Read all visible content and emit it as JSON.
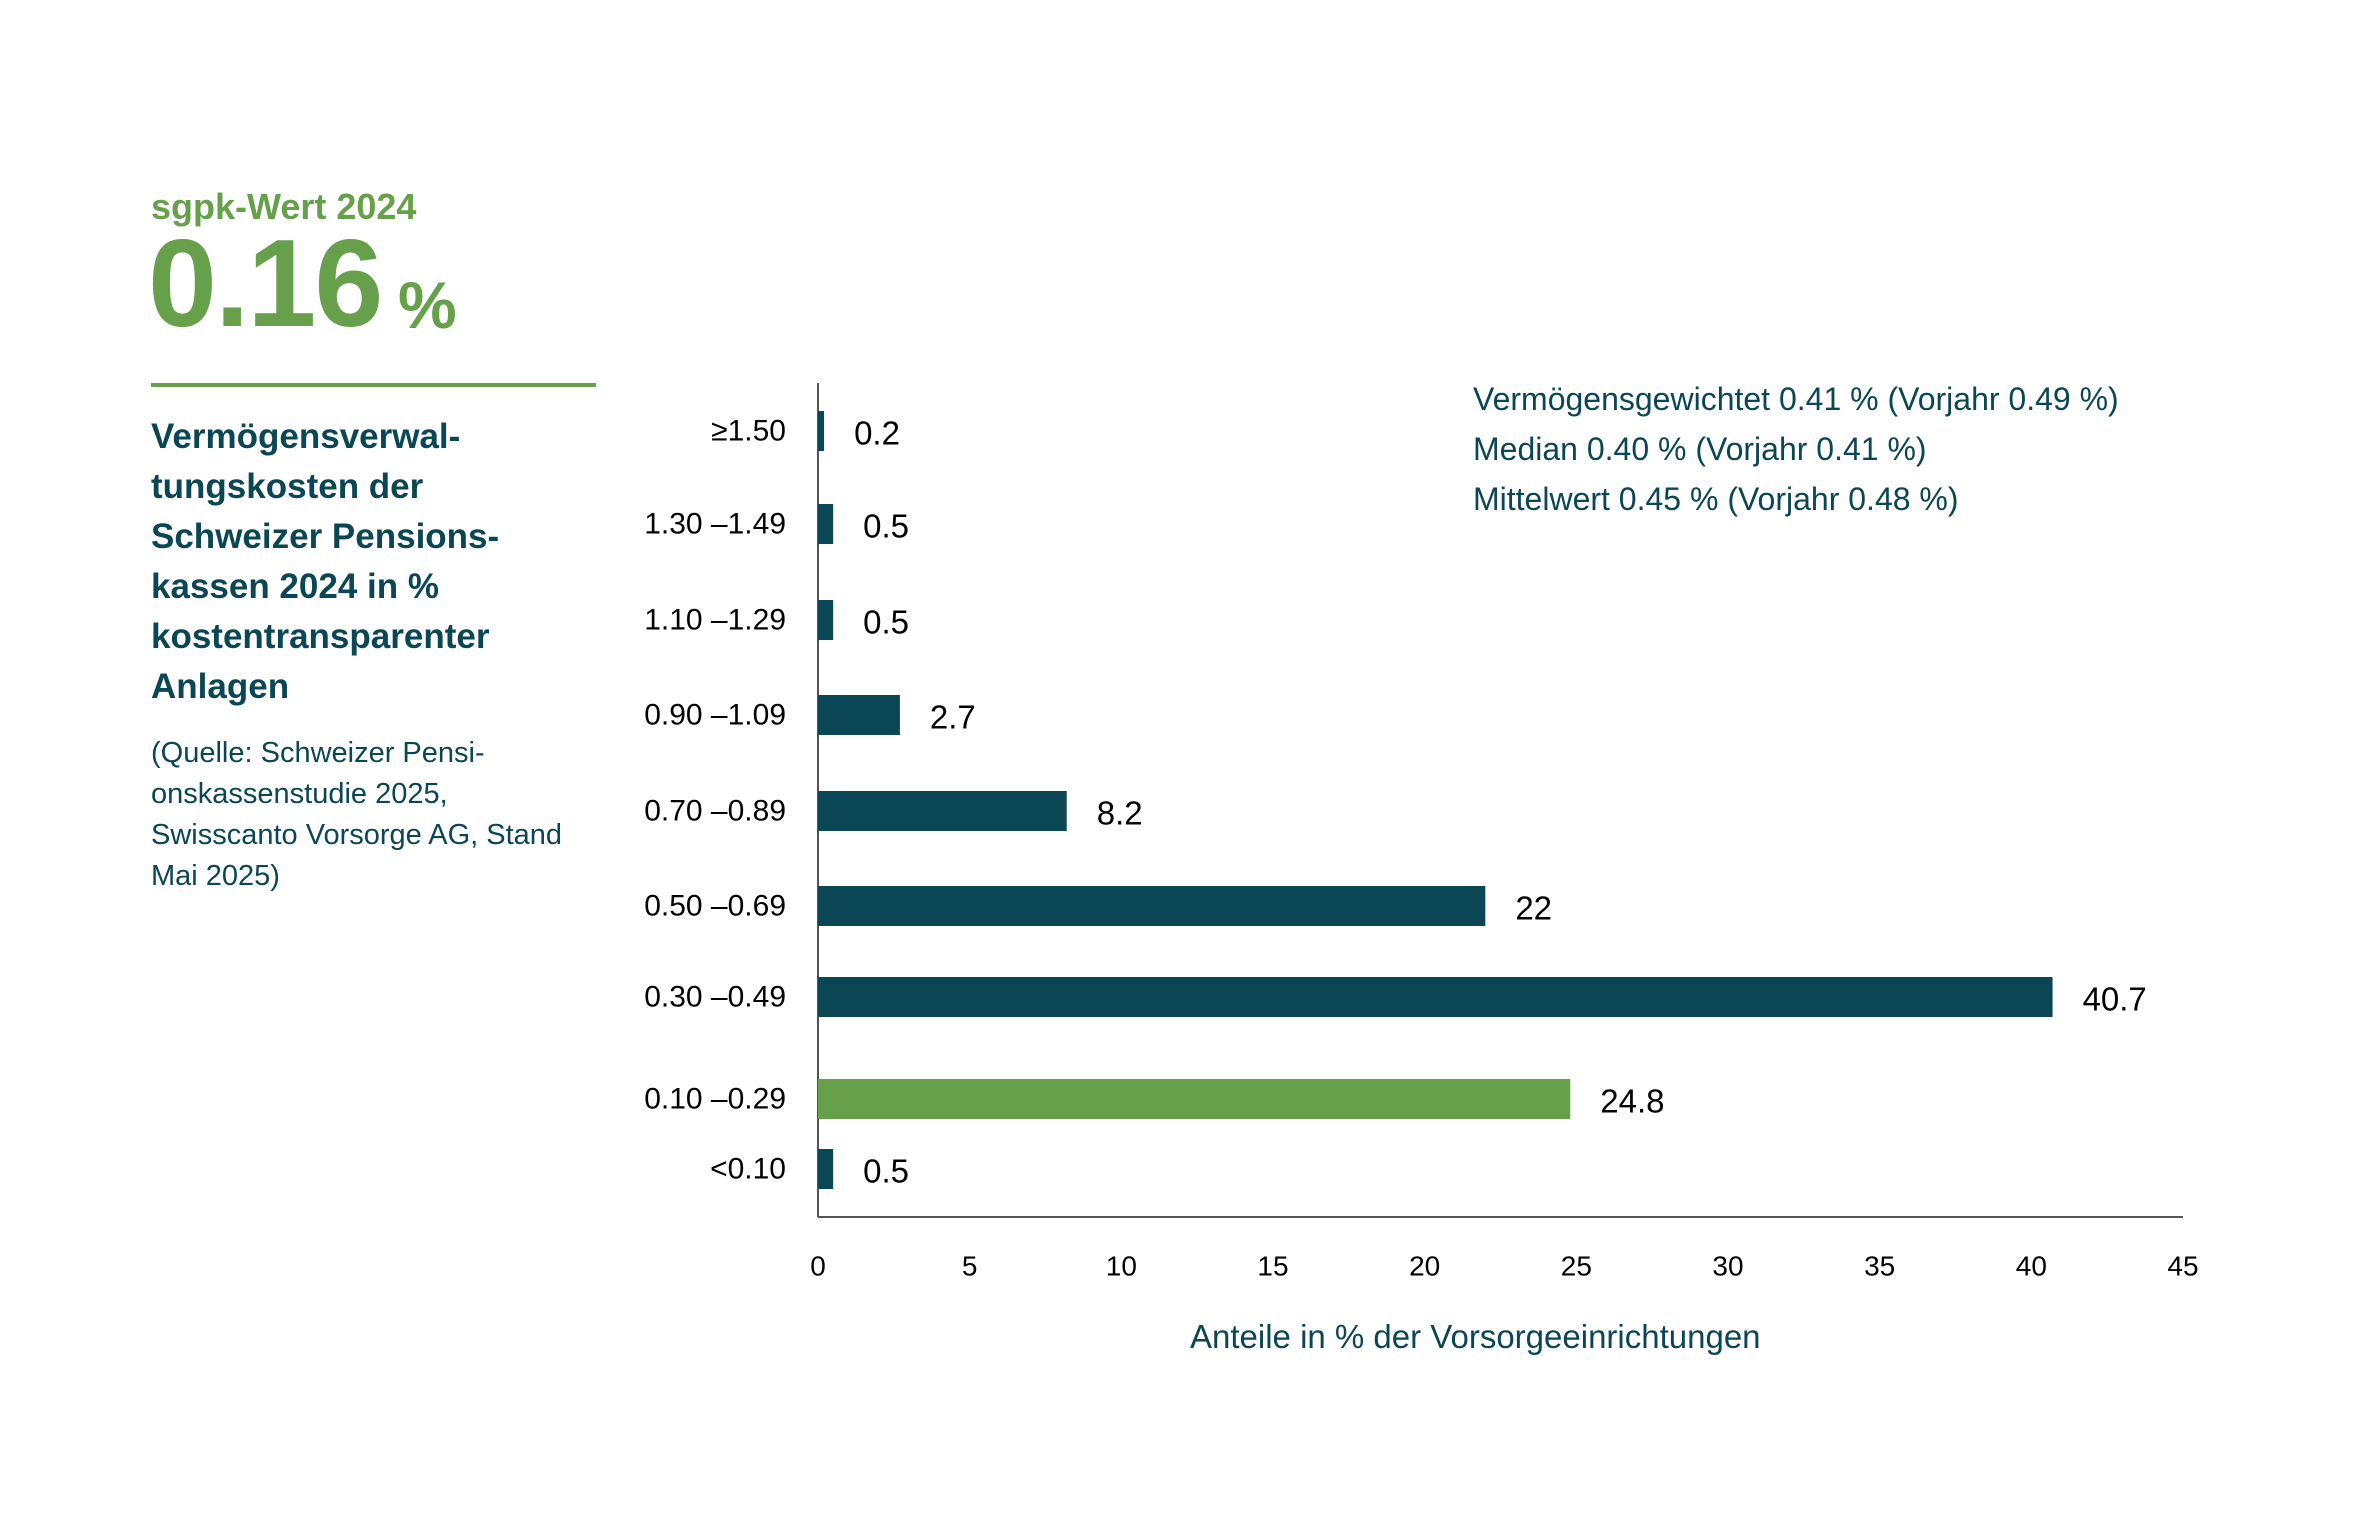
{
  "header": {
    "kicker": "sgpk-Wert 2024",
    "value": "0.16",
    "unit": "%"
  },
  "title": "Vermögensverwal­tungskosten der Schweizer Pensions­kassen 2024 in % kostentransparenter Anlagen",
  "source": "(Quelle: Schweizer Pensi­onskassenstudie 2025, Swisscanto Vorsorge AG, Stand Mai 2025)",
  "stats": [
    "Vermögensgewichtet 0.41 % (Vorjahr 0.49 %)",
    "Median 0.40 % (Vorjahr 0.41 %)",
    "Mittelwert 0.45 % (Vorjahr 0.48 %)"
  ],
  "colors": {
    "bar": "#0b4654",
    "highlight": "#66a04a",
    "axis": "#555555",
    "text": "#000000"
  },
  "chart_data": {
    "type": "bar",
    "orientation": "horizontal",
    "categories": [
      "≥1.50",
      "1.30 –1.49",
      "1.10 –1.29",
      "0.90 –1.09",
      "0.70 –0.89",
      "0.50 –0.69",
      "0.30 –0.49",
      "0.10 –0.29",
      "<0.10"
    ],
    "values": [
      0.2,
      0.5,
      0.5,
      2.7,
      8.2,
      22,
      40.7,
      24.8,
      0.5
    ],
    "value_labels": [
      "0.2",
      "0.5",
      "0.5",
      "2.7",
      "8.2",
      "22",
      "40.7",
      "24.8",
      "0.5"
    ],
    "highlight_category": "0.10 –0.29",
    "xlabel": "Anteile in % der Vorsorgeeinrichtungen",
    "ylabel": "",
    "xlim": [
      0,
      45
    ],
    "xticks": [
      "0",
      "5",
      "10",
      "15",
      "20",
      "25",
      "30",
      "35",
      "40",
      "45"
    ],
    "grid": false
  }
}
